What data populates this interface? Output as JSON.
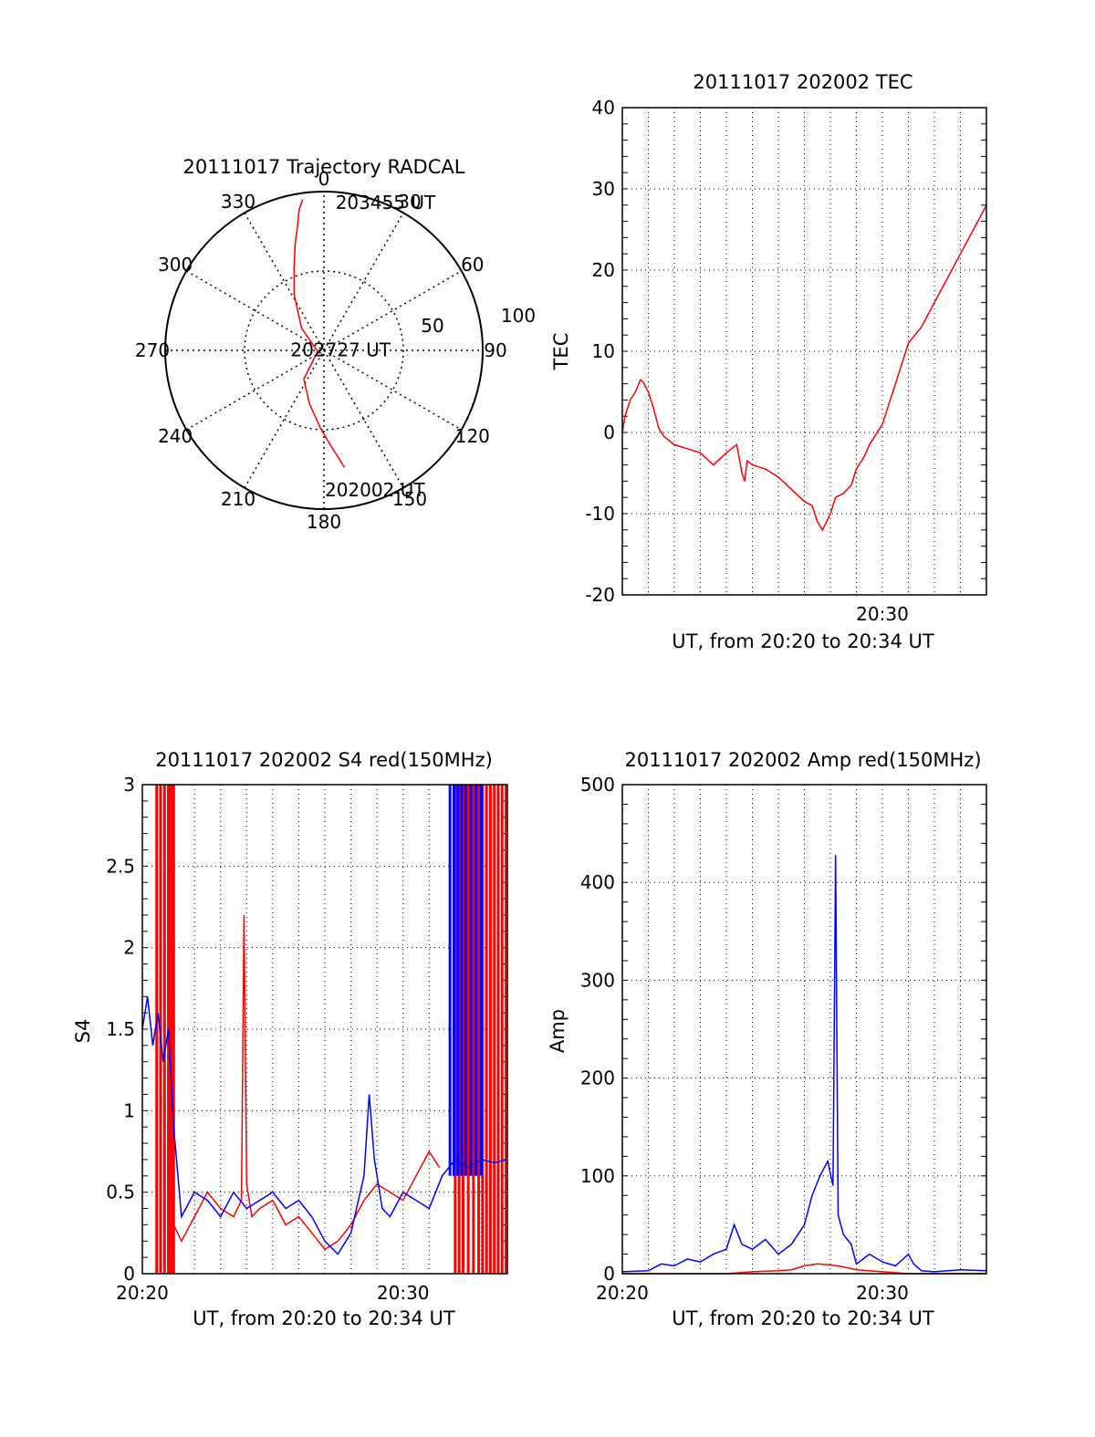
{
  "colors": {
    "red": "#ff0000",
    "blue": "#0000ff",
    "axis": "#000000",
    "grid": "#000000"
  },
  "chart_data": [
    {
      "id": "trajectory",
      "type": "scatter",
      "subtype": "polar",
      "title": "20111017 Trajectory RADCAL",
      "angle_labels": [
        "0",
        "30",
        "60",
        "90",
        "120",
        "150",
        "180",
        "210",
        "240",
        "270",
        "300",
        "330"
      ],
      "radius_labels": [
        "50",
        "100"
      ],
      "grid": true,
      "series": [
        {
          "color": "red",
          "points": [
            [
              170,
              75
            ],
            [
              175,
              62
            ],
            [
              182,
              50
            ],
            [
              195,
              35
            ],
            [
              215,
              22
            ],
            [
              260,
              4
            ],
            [
              315,
              20
            ],
            [
              332,
              40
            ],
            [
              340,
              55
            ],
            [
              345,
              70
            ],
            [
              348,
              80
            ],
            [
              350,
              90
            ],
            [
              352,
              96
            ]
          ]
        }
      ],
      "annotations": [
        {
          "text": "203455 UT",
          "az": 18,
          "r": 98
        },
        {
          "text": "202727 UT",
          "az": 80,
          "r": 2
        },
        {
          "text": "202002 UT",
          "az": 165,
          "r": 91
        }
      ]
    },
    {
      "id": "tec",
      "type": "line",
      "title": "20111017 202002 TEC",
      "xlabel": "UT, from 20:20 to 20:34 UT",
      "ylabel": "TEC",
      "xlim": [
        20.0,
        34.0
      ],
      "ylim": [
        -20,
        40
      ],
      "yticks": [
        "-20",
        "-10",
        "0",
        "10",
        "20",
        "30",
        "40"
      ],
      "xticks": [
        {
          "value": 30,
          "label": "20:30"
        }
      ],
      "grid": true,
      "series": [
        {
          "color": "red",
          "x": [
            20.0,
            20.1,
            20.3,
            20.5,
            20.7,
            20.8,
            21.0,
            21.2,
            21.4,
            21.6,
            22.0,
            22.5,
            23.0,
            23.5,
            24.0,
            24.4,
            24.6,
            24.7,
            24.8,
            25.0,
            25.5,
            26.0,
            26.5,
            27.0,
            27.3,
            27.5,
            27.7,
            28.0,
            28.2,
            28.5,
            28.8,
            29.0,
            29.3,
            29.5,
            30.0,
            30.5,
            31.0,
            31.5,
            32.0,
            32.5,
            33.0,
            33.5,
            34.0
          ],
          "y": [
            0.0,
            2.0,
            4.0,
            5.0,
            6.5,
            6.2,
            5.0,
            3.0,
            0.5,
            -0.5,
            -1.5,
            -2.0,
            -2.5,
            -4.0,
            -2.5,
            -1.5,
            -5.0,
            -6.0,
            -3.5,
            -4.0,
            -4.5,
            -5.5,
            -7.0,
            -8.5,
            -9.0,
            -11.0,
            -12.0,
            -10.0,
            -8.0,
            -7.5,
            -6.5,
            -4.5,
            -3.0,
            -1.5,
            1.0,
            6.0,
            11.0,
            13.0,
            16.0,
            19.0,
            22.0,
            25.0,
            28.0
          ]
        }
      ]
    },
    {
      "id": "s4",
      "type": "line",
      "title": "20111017 202002 S4 red(150MHz)",
      "xlabel": "UT, from 20:20 to 20:34 UT",
      "ylabel": "S4",
      "xlim": [
        20.0,
        34.0
      ],
      "ylim": [
        0,
        3
      ],
      "yticks": [
        "0",
        "0.5",
        "1",
        "1.5",
        "2",
        "2.5",
        "3"
      ],
      "xticks": [
        {
          "value": 20,
          "label": "20:20"
        },
        {
          "value": 30,
          "label": "20:30"
        }
      ],
      "grid": true,
      "series": [
        {
          "color": "red",
          "x": [
            21.2,
            21.5,
            22.0,
            22.5,
            23.0,
            23.5,
            23.8,
            23.9,
            24.0,
            24.2,
            24.5,
            25.0,
            25.5,
            26.0,
            26.5,
            27.0,
            27.5,
            28.0,
            28.5,
            29.0,
            29.5,
            30.0,
            30.5,
            31.0,
            31.4
          ],
          "y": [
            0.3,
            0.2,
            0.35,
            0.5,
            0.4,
            0.35,
            0.45,
            2.2,
            0.55,
            0.35,
            0.4,
            0.45,
            0.3,
            0.35,
            0.25,
            0.15,
            0.2,
            0.3,
            0.45,
            0.55,
            0.5,
            0.45,
            0.6,
            0.75,
            0.65
          ]
        },
        {
          "color": "blue",
          "x": [
            20.0,
            20.2,
            20.4,
            20.6,
            20.8,
            21.0,
            21.2,
            21.5,
            22.0,
            22.5,
            23.0,
            23.5,
            24.0,
            24.5,
            25.0,
            25.5,
            26.0,
            26.5,
            27.0,
            27.5,
            28.0,
            28.5,
            28.7,
            28.9,
            29.2,
            29.5,
            30.0,
            30.5,
            31.0,
            31.5,
            32.0,
            32.5,
            33.0,
            33.5,
            34.0
          ],
          "y": [
            1.5,
            1.7,
            1.4,
            1.6,
            1.3,
            1.5,
            0.9,
            0.35,
            0.5,
            0.45,
            0.35,
            0.5,
            0.4,
            0.45,
            0.5,
            0.4,
            0.45,
            0.35,
            0.2,
            0.12,
            0.25,
            0.6,
            1.1,
            0.7,
            0.4,
            0.35,
            0.5,
            0.45,
            0.4,
            0.6,
            0.7,
            0.65,
            0.7,
            0.68,
            0.7
          ]
        }
      ],
      "red_spikes_x": [
        20.55,
        20.7,
        20.85,
        21.0,
        21.1,
        21.2,
        32.0,
        32.15,
        32.3,
        32.5,
        32.7,
        32.9,
        33.05,
        33.2,
        33.35,
        33.5,
        33.65,
        33.8,
        33.95
      ],
      "blue_spikes_x": [
        31.8,
        31.95,
        32.1,
        32.25,
        32.4,
        32.6,
        32.8,
        33.0
      ]
    },
    {
      "id": "amp",
      "type": "line",
      "title": "20111017 202002 Amp red(150MHz)",
      "xlabel": "UT, from 20:20 to 20:34 UT",
      "ylabel": "Amp",
      "xlim": [
        20.0,
        34.0
      ],
      "ylim": [
        0,
        500
      ],
      "yticks": [
        "0",
        "100",
        "200",
        "300",
        "400",
        "500"
      ],
      "xticks": [
        {
          "value": 20,
          "label": "20:20"
        },
        {
          "value": 30,
          "label": "20:30"
        }
      ],
      "grid": true,
      "series": [
        {
          "color": "red",
          "x": [
            20.0,
            22.0,
            24.0,
            25.0,
            26.0,
            26.5,
            27.0,
            27.5,
            28.0,
            28.5,
            29.0,
            30.0,
            31.0,
            34.0
          ],
          "y": [
            0,
            0,
            0,
            2,
            3,
            4,
            8,
            10,
            9,
            7,
            4,
            2,
            0,
            0
          ]
        },
        {
          "color": "blue",
          "x": [
            20.0,
            21.0,
            21.5,
            22.0,
            22.5,
            23.0,
            23.5,
            24.0,
            24.3,
            24.6,
            25.0,
            25.5,
            26.0,
            26.5,
            27.0,
            27.3,
            27.6,
            27.9,
            28.1,
            28.2,
            28.3,
            28.5,
            28.8,
            29.0,
            29.5,
            30.0,
            30.5,
            30.8,
            31.0,
            31.2,
            31.5,
            32.0,
            33.0,
            34.0
          ],
          "y": [
            2,
            3,
            10,
            8,
            15,
            12,
            20,
            25,
            50,
            30,
            25,
            35,
            20,
            30,
            50,
            80,
            100,
            115,
            90,
            428,
            60,
            40,
            30,
            10,
            20,
            12,
            8,
            15,
            20,
            10,
            3,
            2,
            4,
            3
          ]
        }
      ]
    }
  ]
}
